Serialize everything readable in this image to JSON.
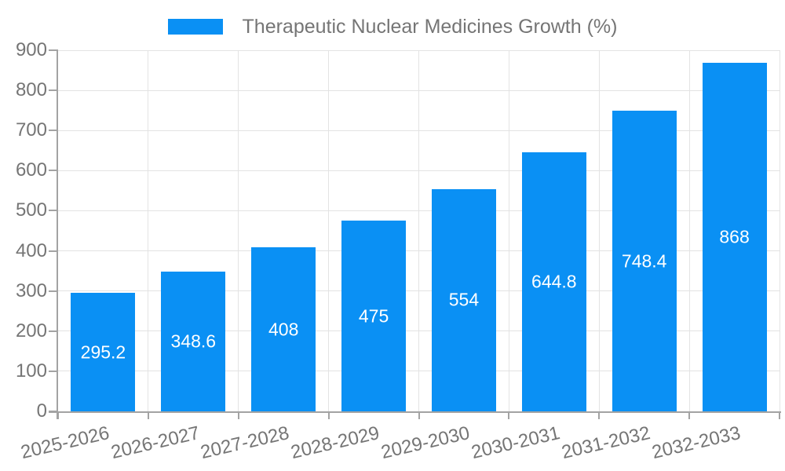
{
  "chart_data": {
    "type": "bar",
    "title": "",
    "legend_label": "Therapeutic Nuclear Medicines Growth (%)",
    "legend_position": "top-center",
    "categories": [
      "2025-2026",
      "2026-2027",
      "2027-2028",
      "2028-2029",
      "2029-2030",
      "2030-2031",
      "2031-2032",
      "2032-2033"
    ],
    "series": [
      {
        "name": "Therapeutic Nuclear Medicines Growth (%)",
        "values": [
          295.2,
          348.6,
          408,
          475,
          554,
          644.8,
          748.4,
          868
        ],
        "value_labels": [
          "295.2",
          "348.6",
          "408",
          "475",
          "554",
          "644.8",
          "748.4",
          "868"
        ]
      }
    ],
    "xlabel": "",
    "ylabel": "",
    "ylim": [
      0,
      900
    ],
    "ytick_step": 100,
    "yticks": [
      "0",
      "100",
      "200",
      "300",
      "400",
      "500",
      "600",
      "700",
      "800",
      "900"
    ],
    "grid": "on",
    "colors": {
      "bar": "#0a90f4",
      "axis_label": "#757575",
      "legend_text": "#757575",
      "value_label": "#ffffff",
      "gridline": "#e3e3e3",
      "axis_line": "#a3a3a3",
      "background": "#ffffff"
    }
  }
}
